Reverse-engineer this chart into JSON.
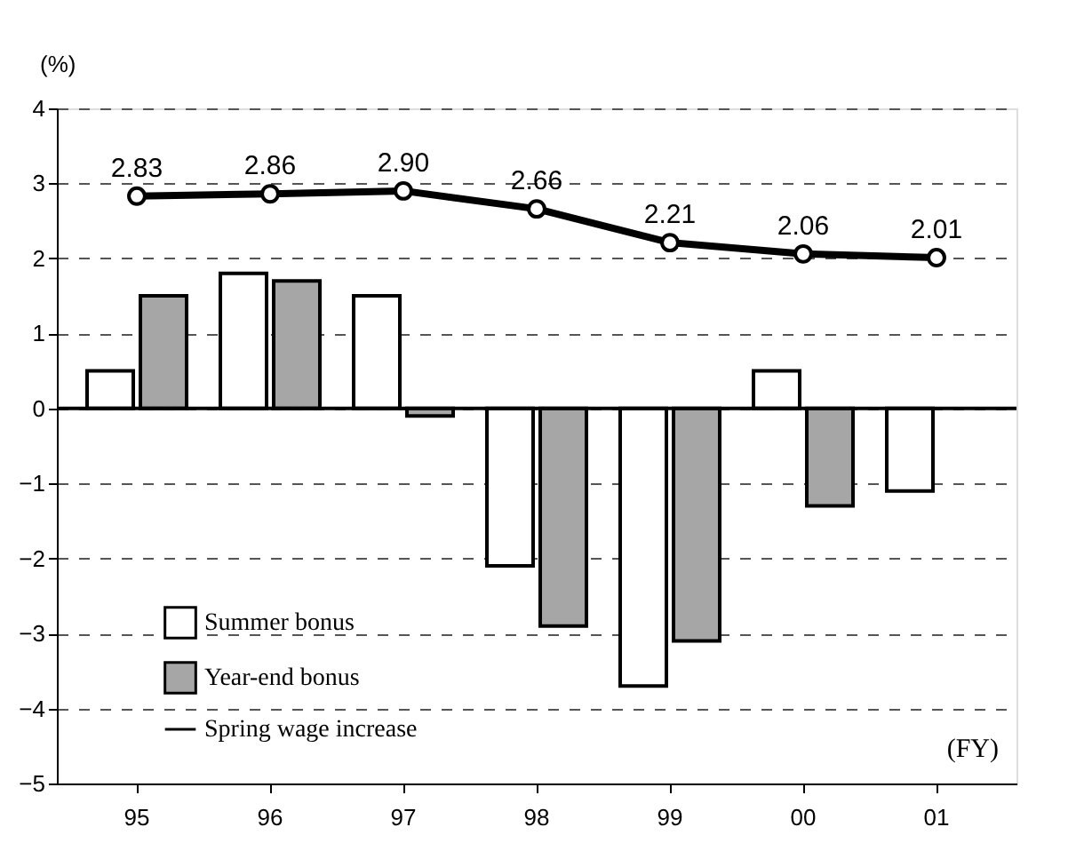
{
  "chart_data": {
    "type": "bar",
    "categories": [
      "95",
      "96",
      "97",
      "98",
      "99",
      "00",
      "01"
    ],
    "ylabel": "(%)",
    "annotations": [
      "(FY)"
    ],
    "series": [
      {
        "name": "Summer bonus",
        "color": "#ffffff",
        "values": [
          0.5,
          1.8,
          1.5,
          -2.1,
          -3.7,
          0.5,
          -1.1
        ]
      },
      {
        "name": "Year-end bonus",
        "color": "#a6a6a6",
        "values": [
          1.5,
          1.7,
          -0.1,
          -2.9,
          -3.1,
          -1.3,
          null
        ]
      },
      {
        "name": "Spring wage increase",
        "type": "line",
        "color": "#000000",
        "marker": "circle",
        "values": [
          2.83,
          2.86,
          2.9,
          2.66,
          2.21,
          2.06,
          2.01
        ],
        "value_labels": [
          "2.83",
          "2.86",
          "2.90",
          "2.66",
          "2.21",
          "2.06",
          "2.01"
        ]
      }
    ],
    "ylim": [
      -5,
      4
    ],
    "yticks": [
      -5,
      -4,
      -3,
      -2,
      -1,
      0,
      1,
      2,
      3,
      4
    ],
    "ref_lines": [
      {
        "axis": "y",
        "value": 0,
        "color": "#000000"
      }
    ],
    "grid": "y",
    "legend": "bottom left"
  }
}
